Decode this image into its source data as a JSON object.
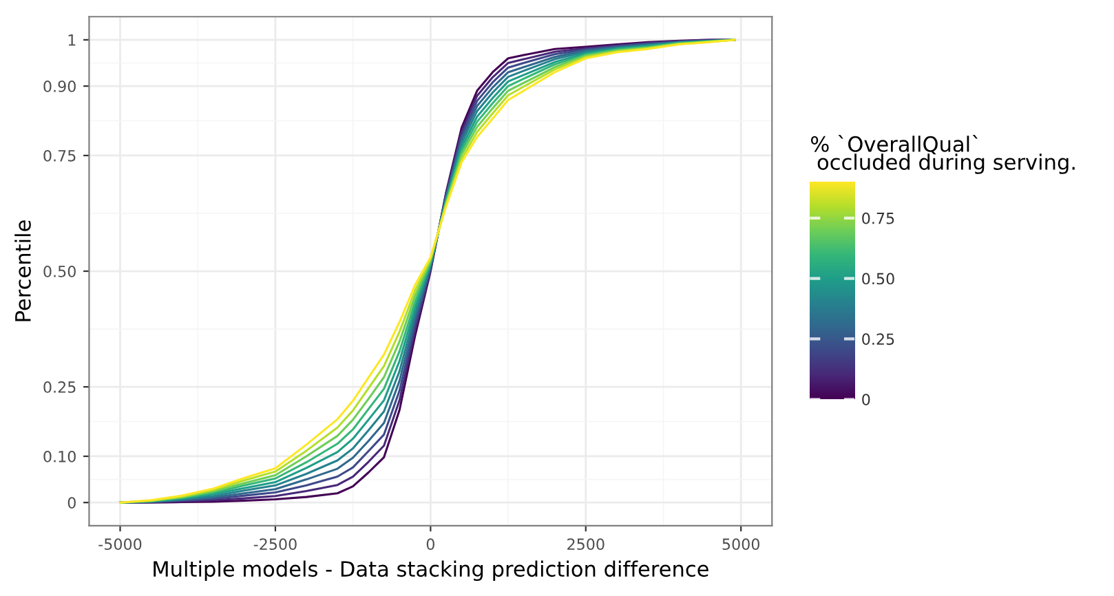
{
  "chart_data": {
    "type": "line",
    "xlabel": "Multiple models - Data stacking prediction difference",
    "ylabel": "Percentile",
    "clabel": "% `OverallQual`\n occluded during serving.",
    "clim": [
      0,
      0.9
    ],
    "cticks": [
      0,
      {
        "value": 0.25,
        "label": "0.25"
      },
      {
        "value": 0.5,
        "label": "0.50"
      },
      {
        "value": 0.75,
        "label": "0.75"
      }
    ],
    "x": [
      -5000,
      -4500,
      -4000,
      -3500,
      -3000,
      -2500,
      -2000,
      -1500,
      -1250,
      -1000,
      -750,
      -500,
      -250,
      0,
      250,
      500,
      750,
      1000,
      1250,
      1500,
      2000,
      2500,
      3000,
      3500,
      4000,
      4500,
      4900
    ],
    "series": [
      {
        "color": "#440154",
        "values": [
          0,
          0,
          0.001,
          0.002,
          0.004,
          0.007,
          0.012,
          0.02,
          0.035,
          0.065,
          0.098,
          0.2,
          0.36,
          0.5,
          0.67,
          0.81,
          0.89,
          0.93,
          0.96,
          0.967,
          0.98,
          0.985,
          0.99,
          0.995,
          0.998,
          1,
          1
        ]
      },
      {
        "color": "#482878",
        "values": [
          0,
          0.001,
          0.003,
          0.005,
          0.009,
          0.014,
          0.025,
          0.038,
          0.056,
          0.088,
          0.123,
          0.221,
          0.372,
          0.503,
          0.667,
          0.802,
          0.879,
          0.919,
          0.95,
          0.958,
          0.974,
          0.982,
          0.988,
          0.993,
          0.997,
          0.999,
          1
        ]
      },
      {
        "color": "#3e4989",
        "values": [
          0,
          0.001,
          0.004,
          0.008,
          0.015,
          0.022,
          0.037,
          0.056,
          0.076,
          0.111,
          0.147,
          0.242,
          0.384,
          0.507,
          0.663,
          0.793,
          0.868,
          0.908,
          0.94,
          0.95,
          0.969,
          0.979,
          0.986,
          0.992,
          0.996,
          0.999,
          1
        ]
      },
      {
        "color": "#31688e",
        "values": [
          0,
          0.002,
          0.006,
          0.011,
          0.02,
          0.029,
          0.05,
          0.073,
          0.097,
          0.133,
          0.172,
          0.263,
          0.397,
          0.51,
          0.66,
          0.785,
          0.857,
          0.897,
          0.93,
          0.941,
          0.963,
          0.977,
          0.984,
          0.99,
          0.995,
          0.998,
          1
        ]
      },
      {
        "color": "#26828e",
        "values": [
          0,
          0.002,
          0.007,
          0.014,
          0.026,
          0.037,
          0.062,
          0.091,
          0.117,
          0.156,
          0.197,
          0.284,
          0.409,
          0.513,
          0.657,
          0.777,
          0.846,
          0.886,
          0.92,
          0.933,
          0.958,
          0.974,
          0.982,
          0.988,
          0.994,
          0.998,
          1
        ]
      },
      {
        "color": "#1f9e89",
        "values": [
          0,
          0.003,
          0.009,
          0.018,
          0.031,
          0.044,
          0.075,
          0.109,
          0.138,
          0.179,
          0.221,
          0.306,
          0.421,
          0.517,
          0.653,
          0.768,
          0.834,
          0.874,
          0.91,
          0.924,
          0.952,
          0.971,
          0.981,
          0.987,
          0.994,
          0.997,
          1
        ]
      },
      {
        "color": "#35b779",
        "values": [
          0,
          0.003,
          0.01,
          0.021,
          0.037,
          0.052,
          0.087,
          0.127,
          0.158,
          0.202,
          0.246,
          0.327,
          0.433,
          0.52,
          0.65,
          0.76,
          0.823,
          0.863,
          0.9,
          0.916,
          0.947,
          0.968,
          0.979,
          0.985,
          0.993,
          0.997,
          1
        ]
      },
      {
        "color": "#6ece58",
        "values": [
          0,
          0.004,
          0.012,
          0.024,
          0.042,
          0.059,
          0.1,
          0.144,
          0.179,
          0.224,
          0.271,
          0.348,
          0.446,
          0.523,
          0.647,
          0.752,
          0.812,
          0.852,
          0.89,
          0.907,
          0.941,
          0.966,
          0.977,
          0.983,
          0.992,
          0.996,
          1
        ]
      },
      {
        "color": "#b5de2b",
        "values": [
          0,
          0.004,
          0.013,
          0.027,
          0.048,
          0.067,
          0.112,
          0.162,
          0.199,
          0.247,
          0.295,
          0.369,
          0.458,
          0.527,
          0.643,
          0.743,
          0.801,
          0.841,
          0.88,
          0.899,
          0.936,
          0.963,
          0.975,
          0.982,
          0.991,
          0.996,
          1
        ]
      },
      {
        "color": "#fde725",
        "values": [
          0,
          0.005,
          0.015,
          0.03,
          0.053,
          0.074,
          0.125,
          0.18,
          0.22,
          0.27,
          0.32,
          0.39,
          0.47,
          0.53,
          0.64,
          0.735,
          0.79,
          0.83,
          0.87,
          0.89,
          0.93,
          0.96,
          0.973,
          0.98,
          0.99,
          0.995,
          1
        ]
      }
    ],
    "xlim": [
      -5500,
      5500
    ],
    "xticks": [
      -5000,
      -2500,
      0,
      2500,
      5000
    ],
    "ylim": [
      -0.05,
      1.05
    ],
    "yticks": [
      0,
      {
        "value": 0.1,
        "label": "0.10"
      },
      0.25,
      {
        "value": 0.5,
        "label": "0.50"
      },
      0.75,
      {
        "value": 0.9,
        "label": "0.90"
      },
      1
    ],
    "grid": true,
    "line_style": "solid"
  }
}
